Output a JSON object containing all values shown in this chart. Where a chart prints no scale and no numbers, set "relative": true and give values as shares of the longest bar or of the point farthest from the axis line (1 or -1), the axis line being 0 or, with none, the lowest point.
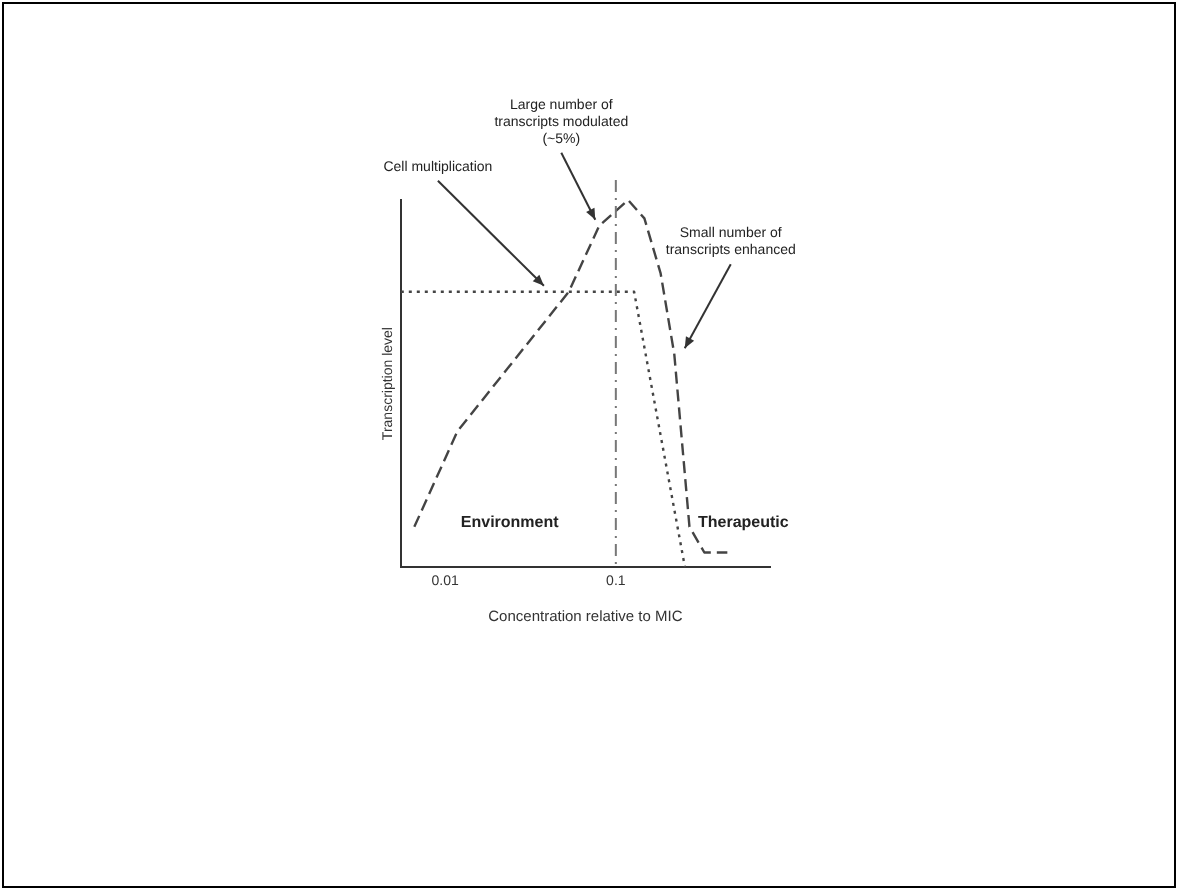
{
  "chart_data": {
    "type": "line",
    "relative": true,
    "xlabel": "Concentration relative to MIC",
    "ylabel": "Transcription level",
    "log": "x",
    "xlim": [
      0.0055,
      0.8
    ],
    "xticks": [
      0.01,
      0.1
    ],
    "grid": false,
    "legend": false,
    "marker": "none",
    "series": [
      {
        "color": "#444444",
        "line_style": "dashed",
        "x": [
          0.0066,
          0.0118,
          0.053,
          0.08,
          0.118,
          0.147,
          0.183,
          0.22,
          0.27,
          0.33,
          0.45
        ],
        "values": [
          0.11,
          0.37,
          0.75,
          0.93,
          1,
          0.95,
          0.8,
          0.58,
          0.11,
          0.04,
          0.04
        ]
      },
      {
        "color": "#444444",
        "line_style": "dotted",
        "x": [
          0.0055,
          0.128,
          0.254
        ],
        "values": [
          0.75,
          0.75,
          0
        ]
      }
    ],
    "ref_lines": [
      {
        "axis": "x",
        "value": 0.1,
        "color": "#777777",
        "line_style": "dashed"
      }
    ],
    "annotations": [
      {
        "text": "Large number of transcripts modulated (~5%)",
        "x": 0.08,
        "y": 0.93
      },
      {
        "text": "Cell multiplication",
        "x": 0.04,
        "y": 0.75
      },
      {
        "text": "Small number of transcripts enhanced",
        "x": 0.24,
        "y": 0.58
      },
      "Environment",
      "Therapeutic"
    ]
  }
}
